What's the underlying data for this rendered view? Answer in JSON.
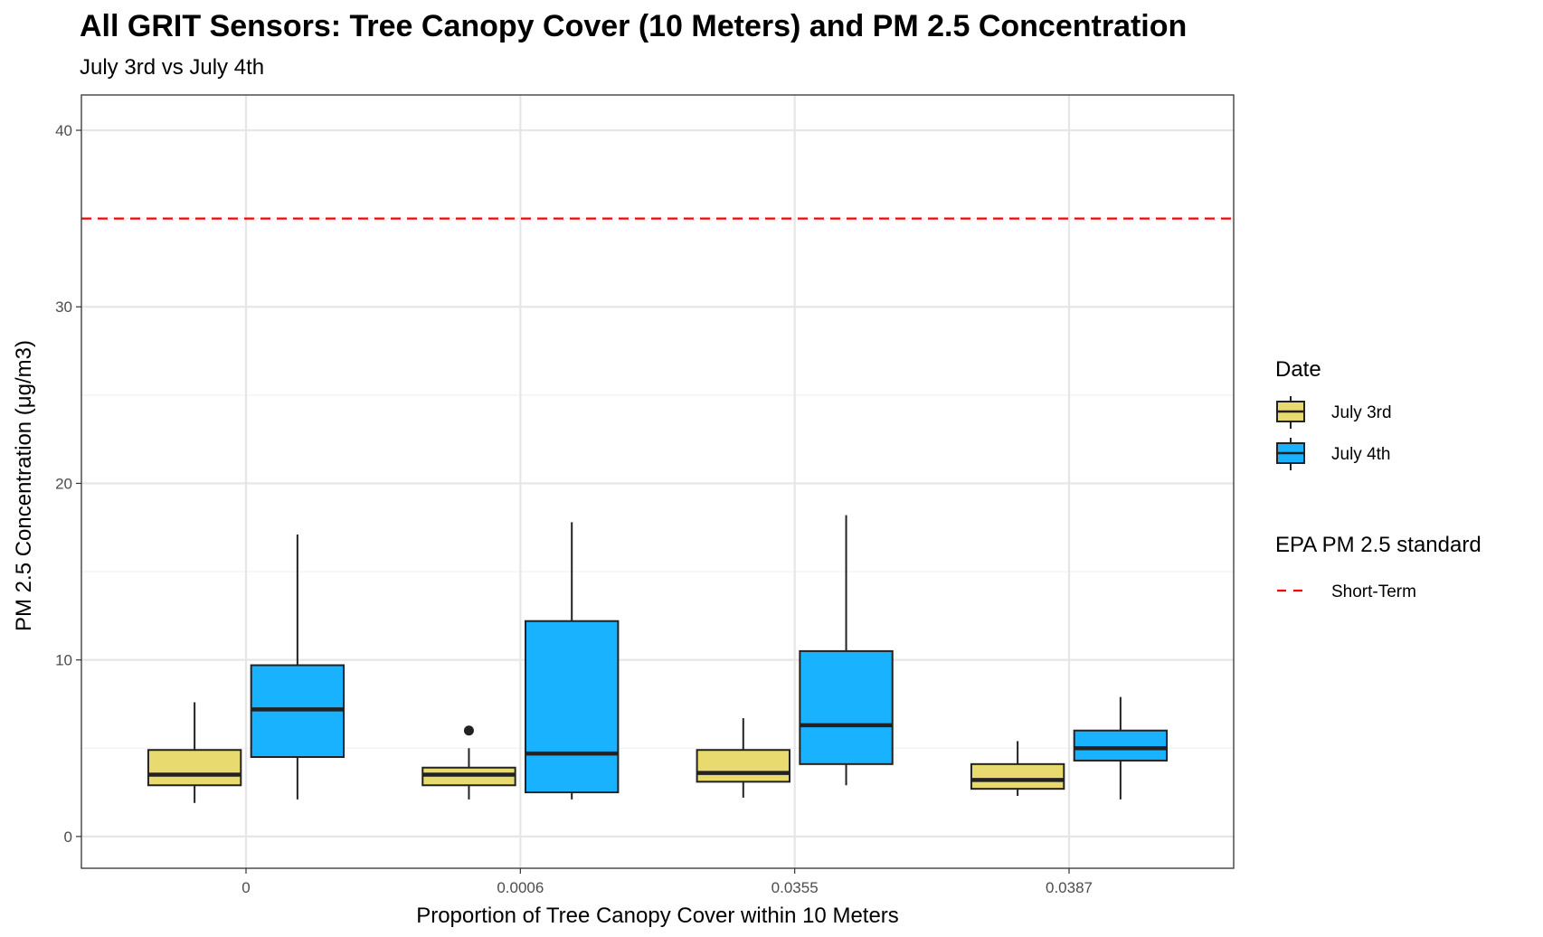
{
  "chart_data": {
    "type": "boxplot",
    "title": "All GRIT Sensors: Tree Canopy Cover (10 Meters) and PM 2.5 Concentration",
    "subtitle": "July 3rd vs July 4th",
    "xlabel": "Proportion of Tree Canopy Cover within 10 Meters",
    "ylabel": "PM 2.5 Concentration (μg/m3)",
    "categories": [
      "0",
      "0.0006",
      "0.0355",
      "0.0387"
    ],
    "ylim": [
      -1.8,
      42
    ],
    "y_ticks": [
      0,
      10,
      20,
      30,
      40
    ],
    "grid": true,
    "legend_position": "right",
    "series": [
      {
        "name": "July 3rd",
        "color": "#E8DA6F",
        "boxes": [
          {
            "min": 1.9,
            "q1": 2.9,
            "median": 3.5,
            "q3": 4.9,
            "max": 7.6,
            "outliers": []
          },
          {
            "min": 2.1,
            "q1": 2.9,
            "median": 3.5,
            "q3": 3.9,
            "max": 5.0,
            "outliers": [
              6.0
            ]
          },
          {
            "min": 2.2,
            "q1": 3.1,
            "median": 3.6,
            "q3": 4.9,
            "max": 6.7,
            "outliers": []
          },
          {
            "min": 2.3,
            "q1": 2.7,
            "median": 3.2,
            "q3": 4.1,
            "max": 5.4,
            "outliers": []
          }
        ]
      },
      {
        "name": "July 4th",
        "color": "#19B2FF",
        "boxes": [
          {
            "min": 2.1,
            "q1": 4.5,
            "median": 7.2,
            "q3": 9.7,
            "max": 17.1,
            "outliers": []
          },
          {
            "min": 2.1,
            "q1": 2.5,
            "median": 4.7,
            "q3": 12.2,
            "max": 17.8,
            "outliers": []
          },
          {
            "min": 2.9,
            "q1": 4.1,
            "median": 6.3,
            "q3": 10.5,
            "max": 18.2,
            "outliers": []
          },
          {
            "min": 2.1,
            "q1": 4.3,
            "median": 5.0,
            "q3": 6.0,
            "max": 7.9,
            "outliers": []
          }
        ]
      }
    ],
    "reference_lines": [
      {
        "name": "Short-Term",
        "value": 35,
        "color": "#FF0000",
        "style": "dashed"
      }
    ],
    "legend": {
      "fill_title": "Date",
      "line_title": "EPA PM 2.5 standard"
    }
  }
}
